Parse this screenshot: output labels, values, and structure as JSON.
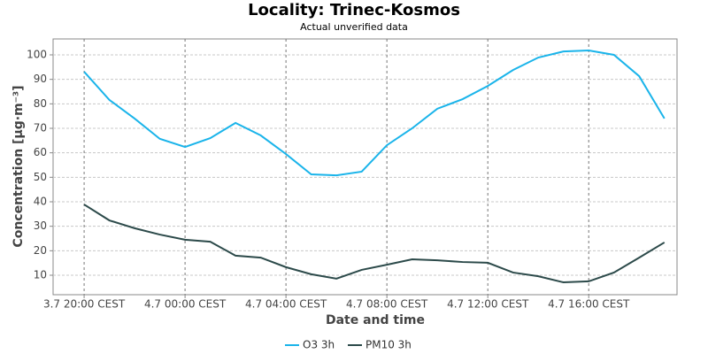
{
  "chart_data": {
    "type": "line",
    "title": "Locality: Trinec-Kosmos",
    "subtitle": "Actual unverified data",
    "x_label": "Date and time",
    "y_label": "Concentration [µg·m⁻³]",
    "x": [
      20,
      21,
      22,
      23,
      24,
      25,
      26,
      27,
      28,
      29,
      30,
      31,
      32,
      33,
      34,
      35,
      36,
      37,
      38,
      39,
      40,
      41,
      42,
      43
    ],
    "series": [
      {
        "name": "O3 3h",
        "color": "#1ab4ea",
        "values": [
          93.1,
          81.6,
          74,
          65.7,
          62.4,
          66,
          72.2,
          67.1,
          59.5,
          51.2,
          50.8,
          52.3,
          63.1,
          70,
          78,
          81.9,
          87.3,
          93.8,
          98.9,
          101.4,
          101.8,
          100,
          91.3,
          74
        ]
      },
      {
        "name": "PM10 3h",
        "color": "#2c4a4a",
        "values": [
          38.9,
          32.4,
          29.2,
          26.6,
          24.5,
          23.7,
          18,
          17.2,
          13.3,
          10.4,
          8.6,
          12.2,
          14.3,
          16.5,
          16.1,
          15.4,
          15.1,
          11.1,
          9.6,
          7.1,
          7.5,
          11.1,
          17.2,
          23.4
        ]
      }
    ],
    "xlim": [
      18.77,
      43.5
    ],
    "xticks": [
      {
        "value": 20,
        "label": "3.7 20:00 CEST"
      },
      {
        "value": 24,
        "label": "4.7 00:00 CEST"
      },
      {
        "value": 28,
        "label": "4.7 04:00 CEST"
      },
      {
        "value": 32,
        "label": "4.7 08:00 CEST"
      },
      {
        "value": 36,
        "label": "4.7 12:00 CEST"
      },
      {
        "value": 40,
        "label": "4.7 16:00 CEST"
      }
    ],
    "ylim": [
      2.05,
      106.5
    ],
    "yticks": [
      10,
      20,
      30,
      40,
      50,
      60,
      70,
      80,
      90,
      100
    ],
    "grid": true,
    "legend": "bottom"
  }
}
